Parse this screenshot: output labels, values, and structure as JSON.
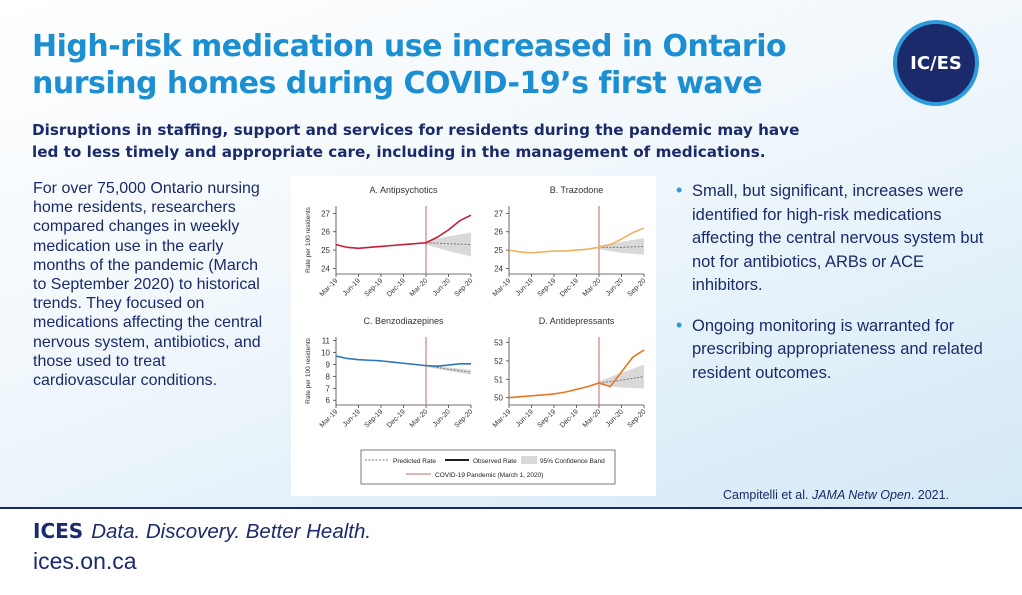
{
  "header": {
    "title": "High-risk medication use increased in Ontario nursing homes during COVID-19’s first wave",
    "logo_text": "IC/ES",
    "subtitle": "Disruptions in staffing, support and services for residents during the pandemic may have led to less timely and appropriate care, including in the management of medications."
  },
  "body_text": "For over 75,000 Ontario nursing home residents, researchers compared changes in weekly medication use in the early months of the pandemic (March to September 2020) to historical trends. They focused on medications affecting the central nervous system, antibiotics, and those used to treat cardiovascular conditions.",
  "bullets": [
    "Small, but significant, increases were identified for high-risk medications affecting the central nervous system but not for antibiotics, ARBs or ACE inhibitors.",
    "Ongoing monitoring is warranted for prescribing appropriateness and related resident outcomes."
  ],
  "citation": {
    "authors": "Campitelli et al. ",
    "journal": "JAMA Netw Open",
    "year": ". 2021."
  },
  "footer": {
    "brand": "ICES",
    "tagline": "Data. Discovery. Better Health.",
    "url": "ices.on.ca"
  },
  "colors": {
    "title": "#1b8fd2",
    "navy": "#1a2a6b",
    "bullet": "#2e9bdc",
    "covid_line": "#d08a86",
    "band": "#d9d9d9"
  },
  "chart_data": [
    {
      "type": "line",
      "title": "A. Antipsychotics",
      "xlabel": "",
      "ylabel": "Rate per 100 residents",
      "x_ticks": [
        "Mar-19",
        "Jun-19",
        "Sep-19",
        "Dec-19",
        "Mar-20",
        "Jun-20",
        "Sep-20"
      ],
      "y_ticks": [
        24,
        25,
        26,
        27
      ],
      "ylim": [
        23.7,
        27.4
      ],
      "color": "#c41e3a",
      "covid_marker": "Mar-20",
      "observed": [
        [
          0,
          25.3
        ],
        [
          0.5,
          25.15
        ],
        [
          1,
          25.1
        ],
        [
          1.5,
          25.15
        ],
        [
          2,
          25.2
        ],
        [
          2.5,
          25.25
        ],
        [
          3,
          25.3
        ],
        [
          3.5,
          25.35
        ],
        [
          4,
          25.4
        ],
        [
          4.5,
          25.7
        ],
        [
          5,
          26.1
        ],
        [
          5.5,
          26.6
        ],
        [
          6,
          26.9
        ]
      ],
      "predicted": [
        [
          4,
          25.4
        ],
        [
          5,
          25.35
        ],
        [
          6,
          25.3
        ]
      ],
      "band_low": [
        [
          4,
          25.3
        ],
        [
          5,
          24.95
        ],
        [
          6,
          24.65
        ]
      ],
      "band_high": [
        [
          4,
          25.5
        ],
        [
          5,
          25.75
        ],
        [
          6,
          25.95
        ]
      ]
    },
    {
      "type": "line",
      "title": "B. Trazodone",
      "xlabel": "",
      "ylabel": "",
      "x_ticks": [
        "Mar-19",
        "Jun-19",
        "Sep-19",
        "Dec-19",
        "Mar-20",
        "Jun-20",
        "Sep-20"
      ],
      "y_ticks": [
        24,
        25,
        26,
        27
      ],
      "ylim": [
        23.7,
        27.4
      ],
      "color": "#f0b25a",
      "covid_marker": "Mar-20",
      "observed": [
        [
          0,
          25.0
        ],
        [
          0.5,
          24.9
        ],
        [
          1,
          24.85
        ],
        [
          1.5,
          24.9
        ],
        [
          2,
          24.95
        ],
        [
          2.5,
          24.95
        ],
        [
          3,
          25.0
        ],
        [
          3.5,
          25.05
        ],
        [
          4,
          25.15
        ],
        [
          4.5,
          25.3
        ],
        [
          5,
          25.6
        ],
        [
          5.5,
          25.95
        ],
        [
          6,
          26.2
        ]
      ],
      "predicted": [
        [
          4,
          25.15
        ],
        [
          5,
          25.15
        ],
        [
          6,
          25.2
        ]
      ],
      "band_low": [
        [
          4,
          25.05
        ],
        [
          5,
          24.85
        ],
        [
          6,
          24.75
        ]
      ],
      "band_high": [
        [
          4,
          25.25
        ],
        [
          5,
          25.45
        ],
        [
          6,
          25.65
        ]
      ]
    },
    {
      "type": "line",
      "title": "C. Benzodiazepines",
      "xlabel": "",
      "ylabel": "Rate per 100 residents",
      "x_ticks": [
        "Mar-19",
        "Jun-19",
        "Sep-19",
        "Dec-19",
        "Mar-20",
        "Jun-20",
        "Sep-20"
      ],
      "y_ticks": [
        6,
        7,
        8,
        9,
        10,
        11
      ],
      "ylim": [
        5.6,
        11.3
      ],
      "color": "#2e78b6",
      "covid_marker": "Mar-20",
      "observed": [
        [
          0,
          9.7
        ],
        [
          0.5,
          9.5
        ],
        [
          1,
          9.4
        ],
        [
          1.5,
          9.35
        ],
        [
          2,
          9.3
        ],
        [
          2.5,
          9.2
        ],
        [
          3,
          9.1
        ],
        [
          3.5,
          9.0
        ],
        [
          4,
          8.9
        ],
        [
          4.5,
          8.85
        ],
        [
          5,
          8.95
        ],
        [
          5.5,
          9.05
        ],
        [
          6,
          9.05
        ]
      ],
      "predicted": [
        [
          4,
          8.9
        ],
        [
          5,
          8.6
        ],
        [
          6,
          8.35
        ]
      ],
      "band_low": [
        [
          4,
          8.8
        ],
        [
          5,
          8.45
        ],
        [
          6,
          8.15
        ]
      ],
      "band_high": [
        [
          4,
          9.0
        ],
        [
          5,
          8.75
        ],
        [
          6,
          8.55
        ]
      ]
    },
    {
      "type": "line",
      "title": "D. Antidepressants",
      "xlabel": "",
      "ylabel": "",
      "x_ticks": [
        "Mar-19",
        "Jun-19",
        "Sep-19",
        "Dec-19",
        "Mar-20",
        "Jun-20",
        "Sep-20"
      ],
      "y_ticks": [
        50,
        51,
        52,
        53
      ],
      "ylim": [
        49.6,
        53.3
      ],
      "color": "#e87722",
      "covid_marker": "Mar-20",
      "observed": [
        [
          0,
          50.0
        ],
        [
          0.5,
          50.05
        ],
        [
          1,
          50.1
        ],
        [
          1.5,
          50.15
        ],
        [
          2,
          50.2
        ],
        [
          2.5,
          50.3
        ],
        [
          3,
          50.45
        ],
        [
          3.5,
          50.6
        ],
        [
          4,
          50.8
        ],
        [
          4.5,
          50.6
        ],
        [
          5,
          51.4
        ],
        [
          5.5,
          52.2
        ],
        [
          6,
          52.6
        ]
      ],
      "predicted": [
        [
          4,
          50.8
        ],
        [
          5,
          50.95
        ],
        [
          6,
          51.15
        ]
      ],
      "band_low": [
        [
          4,
          50.7
        ],
        [
          5,
          50.55
        ],
        [
          6,
          50.5
        ]
      ],
      "band_high": [
        [
          4,
          50.9
        ],
        [
          5,
          51.35
        ],
        [
          6,
          51.8
        ]
      ]
    }
  ],
  "legend": {
    "predicted": "Predicted Rate",
    "observed": "Observed Rate",
    "band": "95% Confidence Band",
    "covid": "COVID-19 Pandemic (March 1, 2020)"
  }
}
